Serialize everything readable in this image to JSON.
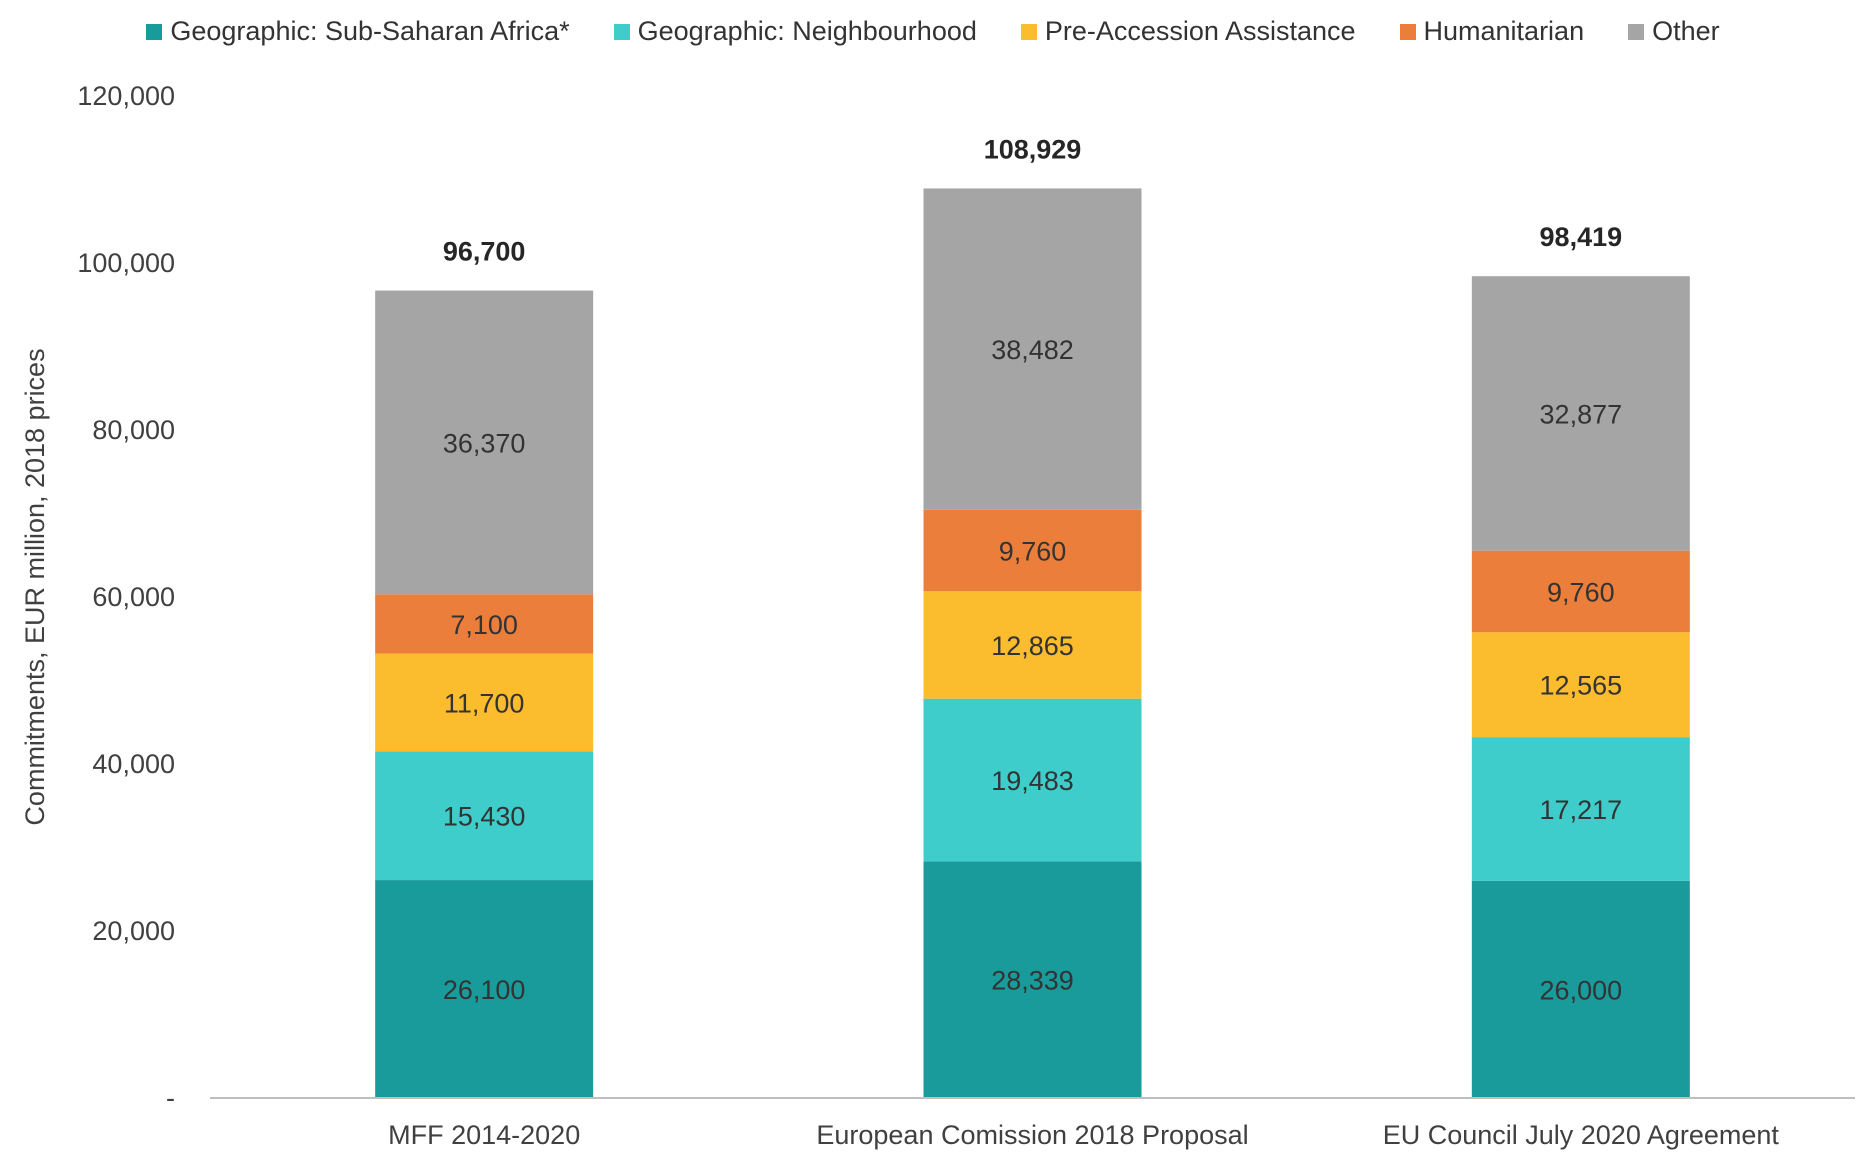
{
  "chart_data": {
    "type": "bar",
    "stacked": true,
    "title": "",
    "xlabel": "",
    "ylabel": "Commitments, EUR million, 2018 prices",
    "ylim": [
      0,
      120000
    ],
    "yticks": [
      0,
      20000,
      40000,
      60000,
      80000,
      100000,
      120000
    ],
    "ytick_labels": [
      "-",
      "20,000",
      "40,000",
      "60,000",
      "80,000",
      "100,000",
      "120,000"
    ],
    "legend_position": "top",
    "categories": [
      "MFF 2014-2020",
      "European Comission 2018 Proposal",
      "EU Council July 2020 Agreement"
    ],
    "series": [
      {
        "name": "Geographic: Sub-Saharan Africa*",
        "color": "#1a9b9b",
        "values": [
          26100,
          28339,
          26000
        ],
        "labels": [
          "26,100",
          "28,339",
          "26,000"
        ]
      },
      {
        "name": "Geographic: Neighbourhood",
        "color": "#3ecdcb",
        "values": [
          15430,
          19483,
          17217
        ],
        "labels": [
          "15,430",
          "19,483",
          "17,217"
        ]
      },
      {
        "name": "Pre-Accession Assistance",
        "color": "#fbbc2e",
        "values": [
          11700,
          12865,
          12565
        ],
        "labels": [
          "11,700",
          "12,865",
          "12,565"
        ]
      },
      {
        "name": "Humanitarian",
        "color": "#ec7e3c",
        "values": [
          7100,
          9760,
          9760
        ],
        "labels": [
          "7,100",
          "9,760",
          "9,760"
        ]
      },
      {
        "name": "Other",
        "color": "#a5a5a5",
        "values": [
          36370,
          38482,
          32877
        ],
        "labels": [
          "36,370",
          "38,482",
          "32,877"
        ]
      }
    ],
    "totals": [
      96700,
      108929,
      98419
    ],
    "total_labels": [
      "96,700",
      "108,929",
      "98,419"
    ]
  },
  "colors": {
    "axis": "#bfbfbf",
    "tick_text": "#404040",
    "value_text": "#333333",
    "total_text": "#262626"
  }
}
